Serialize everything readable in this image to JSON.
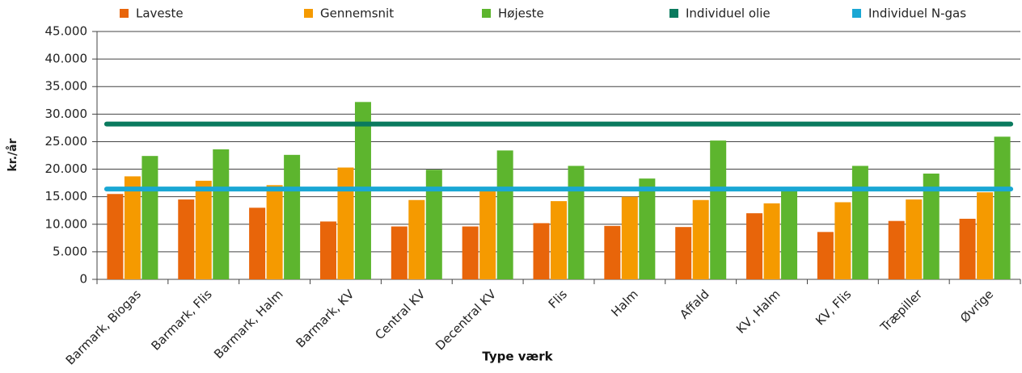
{
  "chart_data": {
    "type": "bar",
    "y_label": "kr./år",
    "x_label": "Type værk",
    "categories": [
      "Barmark, Biogas",
      "Barmark, Flis",
      "Barmark, Halm",
      "Barmark, KV",
      "Central KV",
      "Decentral KV",
      "Flis",
      "Halm",
      "Affald",
      "KV, Halm",
      "KV, Flis",
      "Træpiller",
      "Øvrige"
    ],
    "series": [
      {
        "name": "Laveste",
        "color": "#e8650a",
        "values": [
          15500,
          14500,
          13000,
          10500,
          9600,
          9600,
          10200,
          9700,
          9500,
          12000,
          8600,
          10600,
          11000
        ]
      },
      {
        "name": "Gennemsnit",
        "color": "#f59a00",
        "values": [
          18700,
          17900,
          17100,
          20300,
          14400,
          16200,
          14200,
          15000,
          14400,
          13800,
          14000,
          14500,
          15800
        ]
      },
      {
        "name": "Højeste",
        "color": "#5db52e",
        "values": [
          22400,
          23600,
          22600,
          32200,
          19900,
          23400,
          20600,
          18300,
          25200,
          16300,
          20600,
          19200,
          25900
        ]
      },
      {
        "name": "Individuel olie",
        "color": "#0a7a5e",
        "type": "line",
        "values": [
          28200,
          28200,
          28200,
          28200,
          28200,
          28200,
          28200,
          28200,
          28200,
          28200,
          28200,
          28200,
          28200
        ]
      },
      {
        "name": "Individuel N-gas",
        "color": "#1aa7d4",
        "type": "line",
        "values": [
          16400,
          16400,
          16400,
          16400,
          16400,
          16400,
          16400,
          16400,
          16400,
          16400,
          16400,
          16400,
          16400
        ]
      }
    ],
    "ylim": [
      0,
      45000
    ],
    "yticks": [
      0,
      {
        "value": 5000,
        "label": "5.000"
      },
      {
        "value": 10000,
        "label": "10.000"
      },
      {
        "value": 15000,
        "label": "15.000"
      },
      {
        "value": 20000,
        "label": "20.000"
      },
      {
        "value": 25000,
        "label": "25.000"
      },
      {
        "value": 30000,
        "label": "30.000"
      },
      {
        "value": 35000,
        "label": "35.000"
      },
      {
        "value": 40000,
        "label": "40.000"
      },
      {
        "value": 45000,
        "label": "45.000"
      }
    ],
    "grid": true
  }
}
